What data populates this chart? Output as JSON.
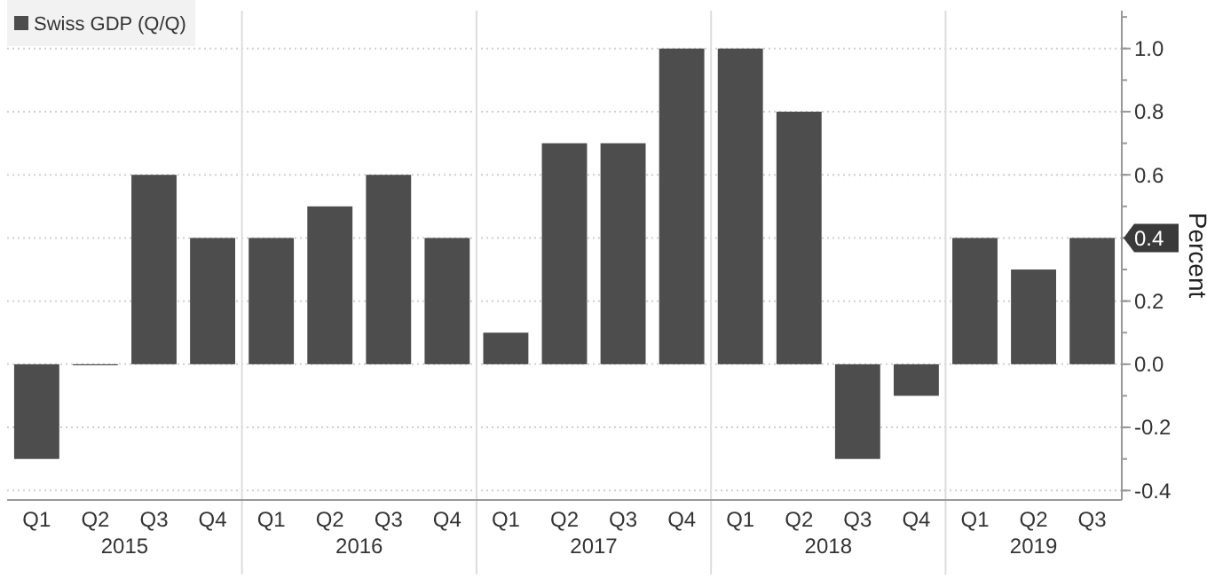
{
  "chart_data": {
    "type": "bar",
    "ylabel": "Percent",
    "categories": [
      "Q1",
      "Q2",
      "Q3",
      "Q4",
      "Q1",
      "Q2",
      "Q3",
      "Q4",
      "Q1",
      "Q2",
      "Q3",
      "Q4",
      "Q1",
      "Q2",
      "Q3",
      "Q4",
      "Q1",
      "Q2",
      "Q3"
    ],
    "series": [
      {
        "name": "Swiss GDP (Q/Q)",
        "color": "#4d4d4d",
        "values": [
          -0.3,
          0.0,
          0.6,
          0.4,
          0.4,
          0.5,
          0.6,
          0.4,
          0.1,
          0.7,
          0.7,
          1.0,
          1.0,
          0.8,
          -0.3,
          -0.1,
          0.4,
          0.3,
          0.4
        ]
      }
    ],
    "annotations": [
      "2015",
      "2016",
      "2017",
      "2018",
      "2019"
    ],
    "ylim": [
      -0.43,
      1.12
    ],
    "yticks": [
      {
        "value": -0.4,
        "label": "-0.4"
      },
      {
        "value": -0.2,
        "label": "-0.2"
      },
      {
        "value": 0,
        "label": "0.0"
      },
      {
        "value": 0.2,
        "label": "0.2"
      },
      {
        "value": 0.4,
        "label": "0.4"
      },
      {
        "value": 0.6,
        "label": "0.6"
      },
      {
        "value": 0.8,
        "label": "0.8"
      },
      {
        "value": 1,
        "label": "1.0"
      }
    ],
    "grid": "y",
    "legend": "top left"
  }
}
